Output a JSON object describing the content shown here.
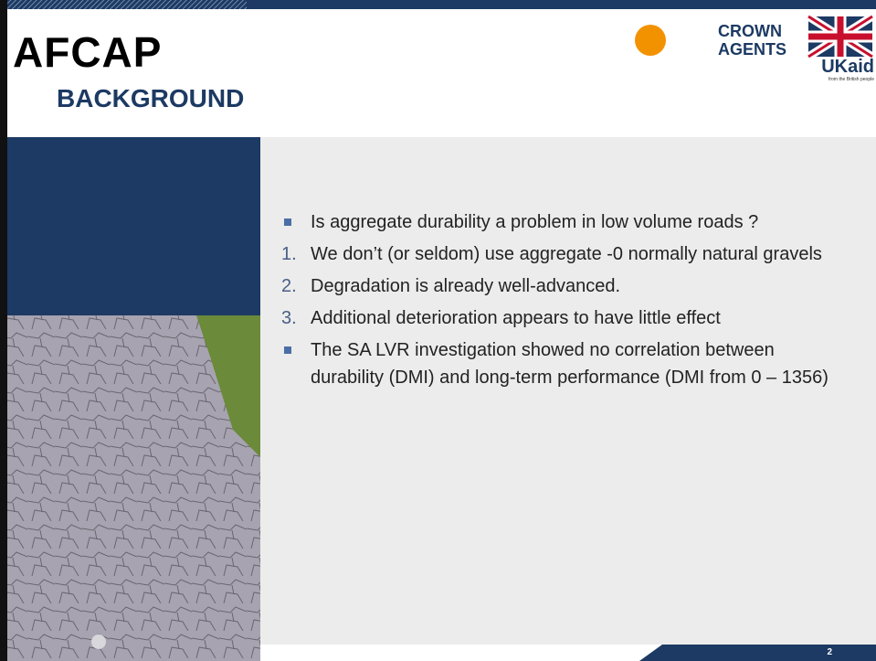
{
  "header": {
    "brand": "AFCAP",
    "section": "BACKGROUND",
    "logo_crown": [
      "CROWN",
      "AGENTS"
    ],
    "logo_ukaid": "UKaid",
    "logo_ukaid_tagline": "from the British people"
  },
  "content": {
    "items": [
      {
        "text": "Is aggregate durability a problem in low volume roads ?"
      },
      {
        "number": "1.",
        "text": "We don’t (or seldom) use aggregate -0 normally natural gravels"
      },
      {
        "number": "2.",
        "text": "Degradation is already well-advanced."
      },
      {
        "number": "3.",
        "text": "Additional deterioration appears to have little effect"
      },
      {
        "text": "The SA LVR investigation showed no correlation between durability (DMI) and long-term performance (DMI from 0 – 1356)"
      }
    ]
  },
  "footer": {
    "page_number": "2"
  }
}
